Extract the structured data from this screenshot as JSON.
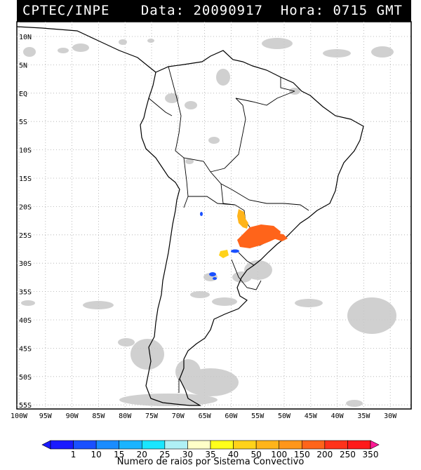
{
  "header": {
    "left": "CPTEC/INPE",
    "right": "Data: 20090917  Hora: 0715 GMT"
  },
  "map": {
    "lat_labels": [
      "10N",
      "5N",
      "EQ",
      "5S",
      "10S",
      "15S",
      "20S",
      "25S",
      "30S",
      "35S",
      "40S",
      "45S",
      "50S",
      "55S"
    ],
    "lon_labels": [
      "100W",
      "95W",
      "90W",
      "85W",
      "80W",
      "75W",
      "70W",
      "65W",
      "60W",
      "55W",
      "50W",
      "45W",
      "40W",
      "35W",
      "30W"
    ]
  },
  "legend": {
    "caption": "Numero de raios por Sistema Convectivo",
    "classes": [
      {
        "label": "1",
        "color": "#1a1aff"
      },
      {
        "label": "10",
        "color": "#1a50ff"
      },
      {
        "label": "15",
        "color": "#1a8cff"
      },
      {
        "label": "20",
        "color": "#1ab4ff"
      },
      {
        "label": "25",
        "color": "#1ae6ff"
      },
      {
        "label": "30",
        "color": "#aff0f5"
      },
      {
        "label": "35",
        "color": "#ffffc8"
      },
      {
        "label": "40",
        "color": "#ffff1a"
      },
      {
        "label": "50",
        "color": "#ffd21a"
      },
      {
        "label": "100",
        "color": "#ffb41a"
      },
      {
        "label": "150",
        "color": "#ff961a"
      },
      {
        "label": "200",
        "color": "#ff641a"
      },
      {
        "label": "250",
        "color": "#ff321a"
      },
      {
        "label": "350",
        "color": "#ff1a1a"
      }
    ],
    "end_color": "#ff1a96"
  }
}
